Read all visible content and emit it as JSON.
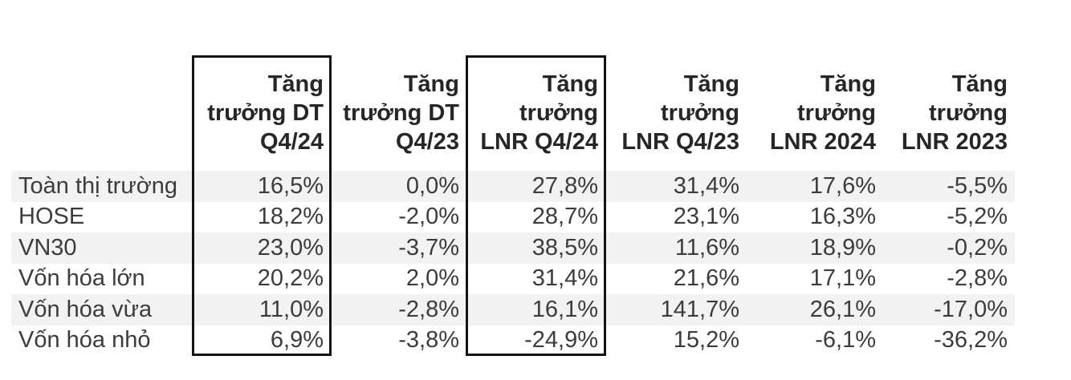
{
  "table": {
    "columns": [
      {
        "label": "Tăng\ntrưởng DT\nQ4/24",
        "boxed": true
      },
      {
        "label": "Tăng\ntrưởng DT\nQ4/23",
        "boxed": false
      },
      {
        "label": "Tăng\ntrưởng\nLNR Q4/24",
        "boxed": true
      },
      {
        "label": "Tăng\ntrưởng\nLNR Q4/23",
        "boxed": false
      },
      {
        "label": "Tăng\ntrưởng\nLNR 2024",
        "boxed": false
      },
      {
        "label": "Tăng\ntrưởng\nLNR 2023",
        "boxed": false
      }
    ],
    "rows": [
      {
        "label": "Toàn thị trường",
        "values": [
          "16,5%",
          "0,0%",
          "27,8%",
          "31,4%",
          "17,6%",
          "-5,5%"
        ]
      },
      {
        "label": "HOSE",
        "values": [
          "18,2%",
          "-2,0%",
          "28,7%",
          "23,1%",
          "16,3%",
          "-5,2%"
        ]
      },
      {
        "label": "VN30",
        "values": [
          "23,0%",
          "-3,7%",
          "38,5%",
          "11,6%",
          "18,9%",
          "-0,2%"
        ]
      },
      {
        "label": "Vốn hóa lớn",
        "values": [
          "20,2%",
          "2,0%",
          "31,4%",
          "21,6%",
          "17,1%",
          "-2,8%"
        ]
      },
      {
        "label": "Vốn hóa vừa",
        "values": [
          "11,0%",
          "-2,8%",
          "16,1%",
          "141,7%",
          "26,1%",
          "-17,0%"
        ]
      },
      {
        "label": "Vốn hóa nhỏ",
        "values": [
          "6,9%",
          "-3,8%",
          "-24,9%",
          "15,2%",
          "-6,1%",
          "-36,2%"
        ]
      }
    ]
  },
  "colors": {
    "stripe": "#f2f2f2",
    "highlight_border": "#141414",
    "header_text": "#262626",
    "body_text": "#3c3c3c",
    "background": "#ffffff"
  },
  "chart_data": {
    "type": "table",
    "title": "",
    "columns": [
      "Tăng trưởng DT Q4/24",
      "Tăng trưởng DT Q4/23",
      "Tăng trưởng LNR Q4/24",
      "Tăng trưởng LNR Q4/23",
      "Tăng trưởng LNR 2024",
      "Tăng trưởng LNR 2023"
    ],
    "row_headers": [
      "Toàn thị trường",
      "HOSE",
      "VN30",
      "Vốn hóa lớn",
      "Vốn hóa vừa",
      "Vốn hóa nhỏ"
    ],
    "values_pct": [
      [
        16.5,
        0.0,
        27.8,
        31.4,
        17.6,
        -5.5
      ],
      [
        18.2,
        -2.0,
        28.7,
        23.1,
        16.3,
        -5.2
      ],
      [
        23.0,
        -3.7,
        38.5,
        11.6,
        18.9,
        -0.2
      ],
      [
        20.2,
        2.0,
        31.4,
        21.6,
        17.1,
        -2.8
      ],
      [
        11.0,
        -2.8,
        16.1,
        141.7,
        26.1,
        -17.0
      ],
      [
        6.9,
        -3.8,
        -24.9,
        15.2,
        -6.1,
        -36.2
      ]
    ],
    "highlighted_columns": [
      "Tăng trưởng DT Q4/24",
      "Tăng trưởng LNR Q4/24"
    ],
    "layout": {
      "zebra_striping": true,
      "number_alignment": "right",
      "decimal_separator": ","
    }
  }
}
